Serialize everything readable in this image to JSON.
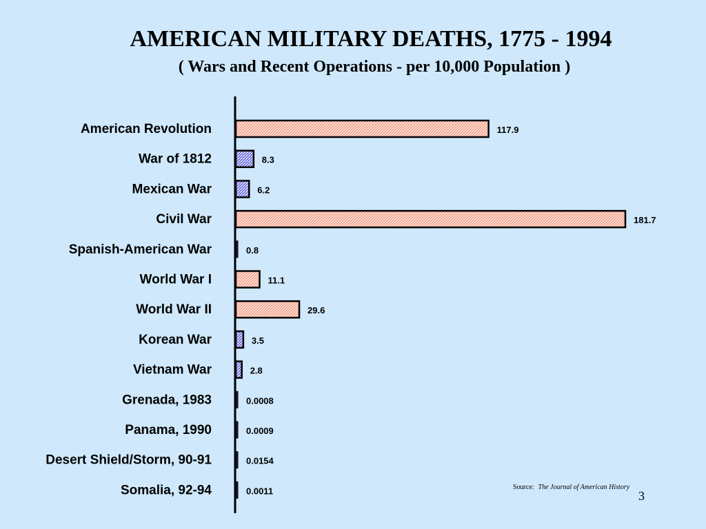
{
  "slide": {
    "title": "AMERICAN MILITARY DEATHS, 1775 - 1994",
    "subtitle": "( Wars and Recent Operations - per 10,000 Population )",
    "source_prefix": "Source:",
    "source_title": "The Journal of American History",
    "page_number": "3"
  },
  "chart_data": {
    "type": "bar",
    "orientation": "horizontal",
    "title": "AMERICAN MILITARY DEATHS, 1775 - 1994",
    "subtitle": "( Wars and Recent Operations - per 10,000 Population )",
    "xlabel": "",
    "ylabel": "",
    "xlim": [
      0,
      181.7
    ],
    "grid": false,
    "categories": [
      "American Revolution",
      "War of 1812",
      "Mexican War",
      "Civil War",
      "Spanish-American War",
      "World War I",
      "World War II",
      "Korean War",
      "Vietnam War",
      "Grenada, 1983",
      "Panama, 1990",
      "Desert Shield/Storm, 90-91",
      "Somalia, 92-94"
    ],
    "values": [
      117.9,
      8.3,
      6.2,
      181.7,
      0.8,
      11.1,
      29.6,
      3.5,
      2.8,
      0.0008,
      0.0009,
      0.0154,
      0.0011
    ],
    "value_labels": [
      "117.9",
      "8.3",
      "6.2",
      "181.7",
      "0.8",
      "11.1",
      "29.6",
      "3.5",
      "2.8",
      "0.0008",
      "0.0009",
      "0.0154",
      "0.0011"
    ],
    "bar_styles": [
      "salmon",
      "blue",
      "blue",
      "salmon",
      "dark",
      "salmon",
      "salmon",
      "blue",
      "blue",
      "dark",
      "dark",
      "dark",
      "dark"
    ],
    "colors": {
      "salmon": "#f2a48c",
      "salmon_hatch": "#ffffff",
      "blue": "#6a6ae0",
      "blue_hatch": "#ffffff",
      "dark": "#1a1a3a",
      "axis": "#000000",
      "background": "#cfe8fb"
    }
  }
}
